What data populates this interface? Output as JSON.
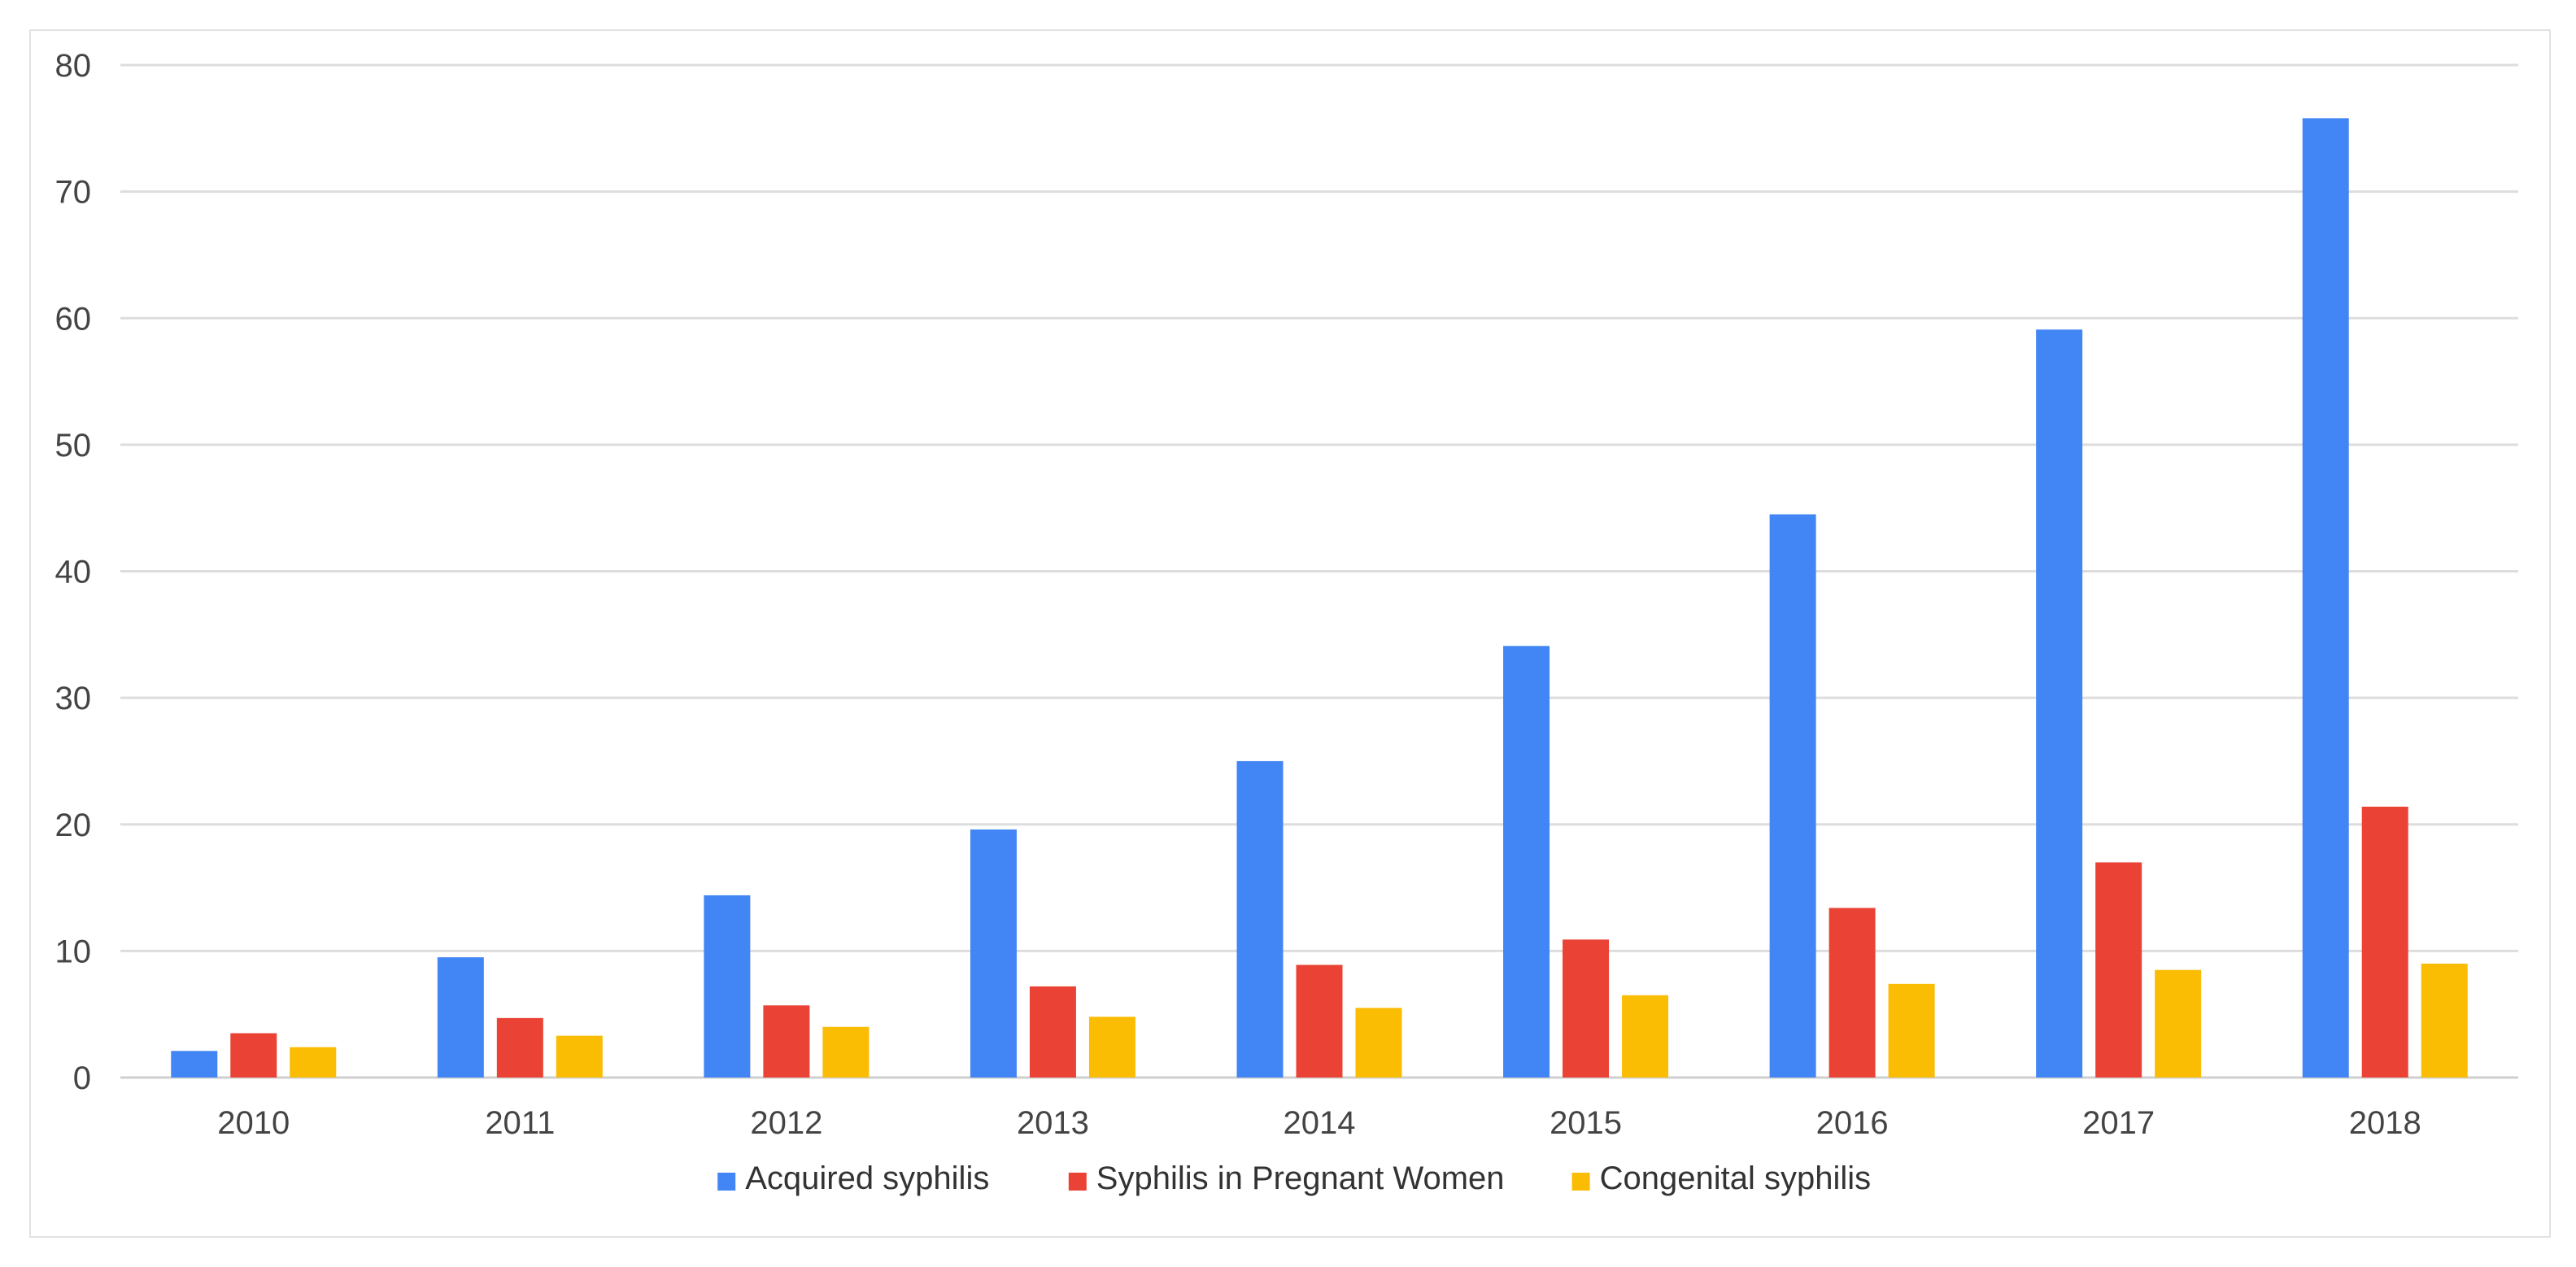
{
  "chart_data": {
    "type": "bar",
    "title": "",
    "xlabel": "",
    "ylabel": "",
    "categories": [
      "2010",
      "2011",
      "2012",
      "2013",
      "2014",
      "2015",
      "2016",
      "2017",
      "2018"
    ],
    "ylim": [
      0,
      80
    ],
    "yticks": [
      0,
      10,
      20,
      30,
      40,
      50,
      60,
      70,
      80
    ],
    "grid": true,
    "legend_position": "bottom",
    "series": [
      {
        "name": "Acquired syphilis",
        "color": "#4285f4",
        "values": [
          2.1,
          9.5,
          14.4,
          19.6,
          25.0,
          34.1,
          44.5,
          59.1,
          75.8
        ]
      },
      {
        "name": "Syphilis in Pregnant Women",
        "color": "#ea4335",
        "values": [
          3.5,
          4.7,
          5.7,
          7.2,
          8.9,
          10.9,
          13.4,
          17.0,
          21.4
        ]
      },
      {
        "name": "Congenital syphilis",
        "color": "#fbbc04",
        "values": [
          2.4,
          3.3,
          4.0,
          4.8,
          5.5,
          6.5,
          7.4,
          8.5,
          9.0
        ]
      }
    ]
  }
}
